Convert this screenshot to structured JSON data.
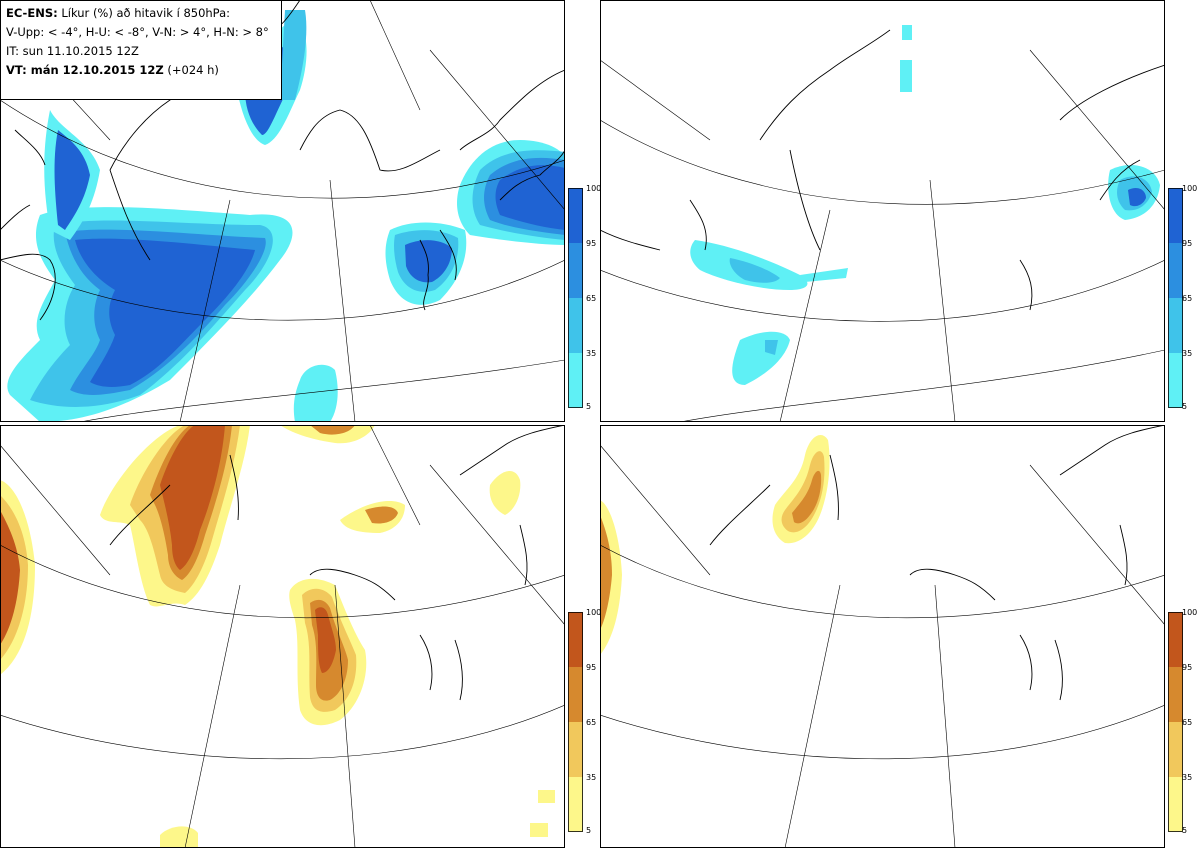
{
  "info": {
    "model_label": "EC-ENS:",
    "description": "Líkur (%) að hitavik í 850hPa:",
    "thresholds": "V-Upp: < -4°, H-U: < -8°, V-N: > 4°, H-N: > 8°",
    "init_time": "IT: sun 11.10.2015 12Z",
    "valid_label": "VT: mán 12.10.2015 12Z",
    "lead": "(+024 h)"
  },
  "colorbar_ticks": [
    "100",
    "95",
    "65",
    "35",
    "5"
  ],
  "colors": {
    "cold": [
      "#5ff0f5",
      "#3fc3ea",
      "#2c8fe0",
      "#1f63d3"
    ],
    "warm": [
      "#fdf78a",
      "#f1c85c",
      "#d6892e",
      "#c2561c"
    ],
    "coast": "#000000",
    "grid": "#000000"
  },
  "panels": [
    {
      "name": "cold-moderate",
      "scheme": "cold"
    },
    {
      "name": "cold-strong",
      "scheme": "cold"
    },
    {
      "name": "warm-moderate",
      "scheme": "warm"
    },
    {
      "name": "warm-strong",
      "scheme": "warm"
    }
  ]
}
